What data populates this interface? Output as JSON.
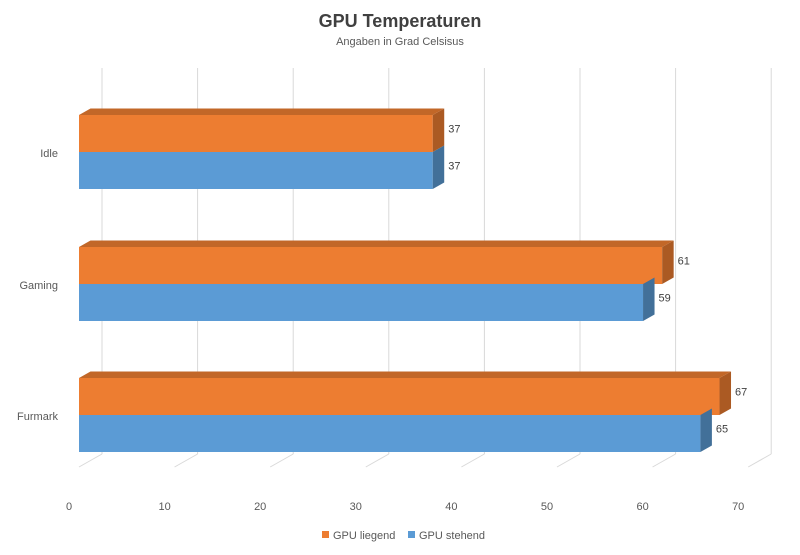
{
  "chart_data": {
    "type": "bar",
    "orientation": "horizontal",
    "style": "3d",
    "title": "GPU Temperaturen",
    "subtitle": "Angaben in Grad Celsisus",
    "categories": [
      "Idle",
      "Gaming",
      "Furmark"
    ],
    "series": [
      {
        "name": "GPU liegend",
        "color": "#ED7D31",
        "values": [
          37,
          61,
          67
        ]
      },
      {
        "name": "GPU stehend",
        "color": "#5B9BD5",
        "values": [
          37,
          59,
          65
        ]
      }
    ],
    "xlim": [
      0,
      70
    ],
    "xticks": [
      "0",
      "10",
      "20",
      "30",
      "40",
      "50",
      "60",
      "70"
    ],
    "data_labels": [
      [
        "37",
        "61",
        "67"
      ],
      [
        "37",
        "59",
        "65"
      ]
    ],
    "grid": true,
    "legend": "bottom"
  }
}
